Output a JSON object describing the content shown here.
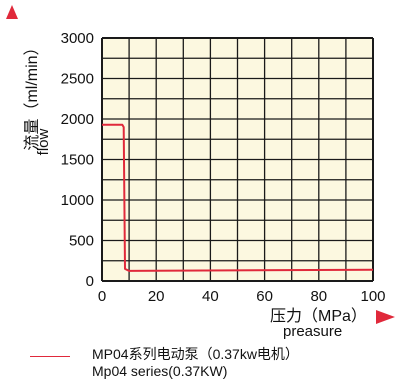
{
  "colors": {
    "series": "#e0293b",
    "arrow": "#e0293b",
    "grid": "#1a1a1a",
    "plot_bg": "#fcf8e0"
  },
  "chart_data": {
    "type": "line",
    "xlabel": "压力（MPa）",
    "xlabel_en": "preasure",
    "ylabel": "流量（ml/min）",
    "ylabel_en": "flow",
    "xlim": [
      0,
      100
    ],
    "ylim": [
      0,
      3000
    ],
    "xticks": [
      "0",
      "20",
      "40",
      "60",
      "80",
      "100"
    ],
    "yticks": [
      "0",
      "500",
      "1000",
      "1500",
      "2000",
      "2500",
      "3000"
    ],
    "x_grid_step": 10,
    "y_grid_step": 250,
    "grid": true,
    "legend_position": "bottom-left",
    "series": [
      {
        "name": "MP04系列电动泵（0.37kw电机）",
        "name_en": "Mp04  series(0.37KW)",
        "color": "#e0293b",
        "x": [
          0,
          7.5,
          8,
          8.5,
          10,
          100
        ],
        "y": [
          1930,
          1930,
          1900,
          150,
          125,
          140
        ]
      }
    ]
  }
}
